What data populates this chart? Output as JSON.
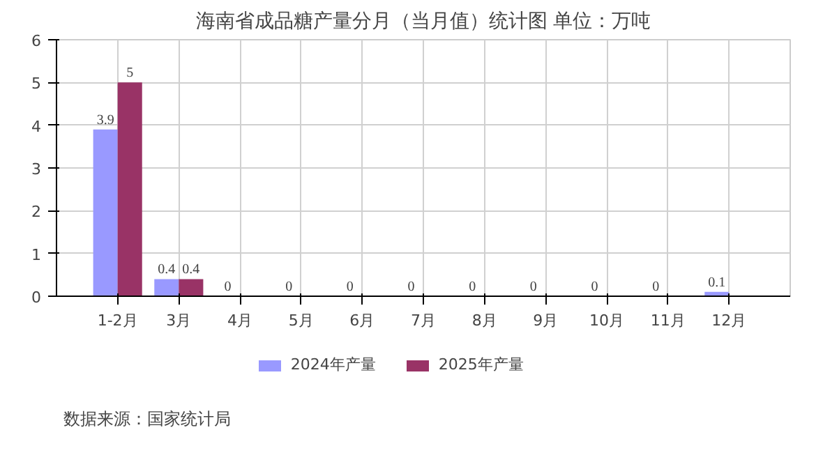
{
  "chart_data": {
    "type": "bar",
    "title": "海南省成品糖产量分月（当月值）统计图 单位：万吨",
    "categories": [
      "1-2月",
      "3月",
      "4月",
      "5月",
      "6月",
      "7月",
      "8月",
      "9月",
      "10月",
      "11月",
      "12月"
    ],
    "series": [
      {
        "name": "2024年产量",
        "color": "#9999ff",
        "values": [
          3.9,
          0.4,
          0,
          0,
          0,
          0,
          0,
          0,
          0,
          0,
          0.1
        ]
      },
      {
        "name": "2025年产量",
        "color": "#993366",
        "values": [
          5,
          0.4,
          null,
          null,
          null,
          null,
          null,
          null,
          null,
          null,
          null
        ]
      }
    ],
    "ylim": [
      0,
      6
    ],
    "yticks": [
      0,
      1,
      2,
      3,
      4,
      5,
      6
    ],
    "grid": true,
    "legend": "bottom",
    "data_labels": true,
    "annotations": [
      "数据来源：国家统计局"
    ]
  }
}
